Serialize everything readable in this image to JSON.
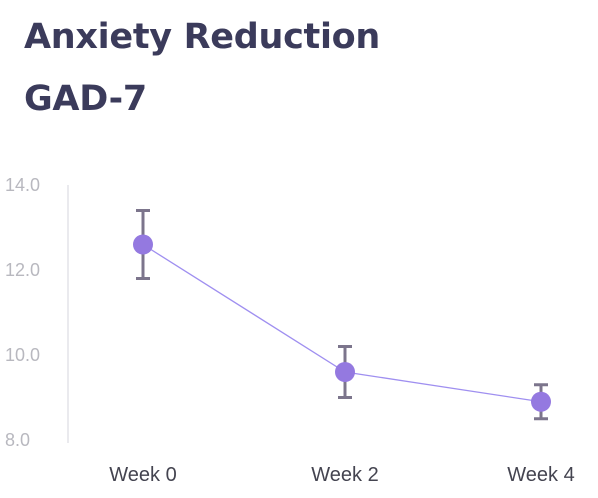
{
  "chart_data": {
    "type": "line",
    "title": "Anxiety Reduction",
    "subtitle": "GAD-7",
    "categories": [
      "Week 0",
      "Week 2",
      "Week 4"
    ],
    "x": [
      0,
      2,
      4
    ],
    "series": [
      {
        "values": [
          12.6,
          9.6,
          8.9
        ],
        "error_low": [
          11.8,
          9.0,
          8.5
        ],
        "error_high": [
          13.4,
          10.2,
          9.3
        ]
      }
    ],
    "ylim": [
      8.0,
      14.0
    ],
    "yticks": [
      "8.0",
      "10.0",
      "12.0",
      "14.0"
    ],
    "grid": false,
    "legend": "none",
    "colors": {
      "point": "#9479e0",
      "line": "#9f8ff0",
      "error_bar": "#7c758c",
      "axis": "#e3e3e8"
    }
  }
}
